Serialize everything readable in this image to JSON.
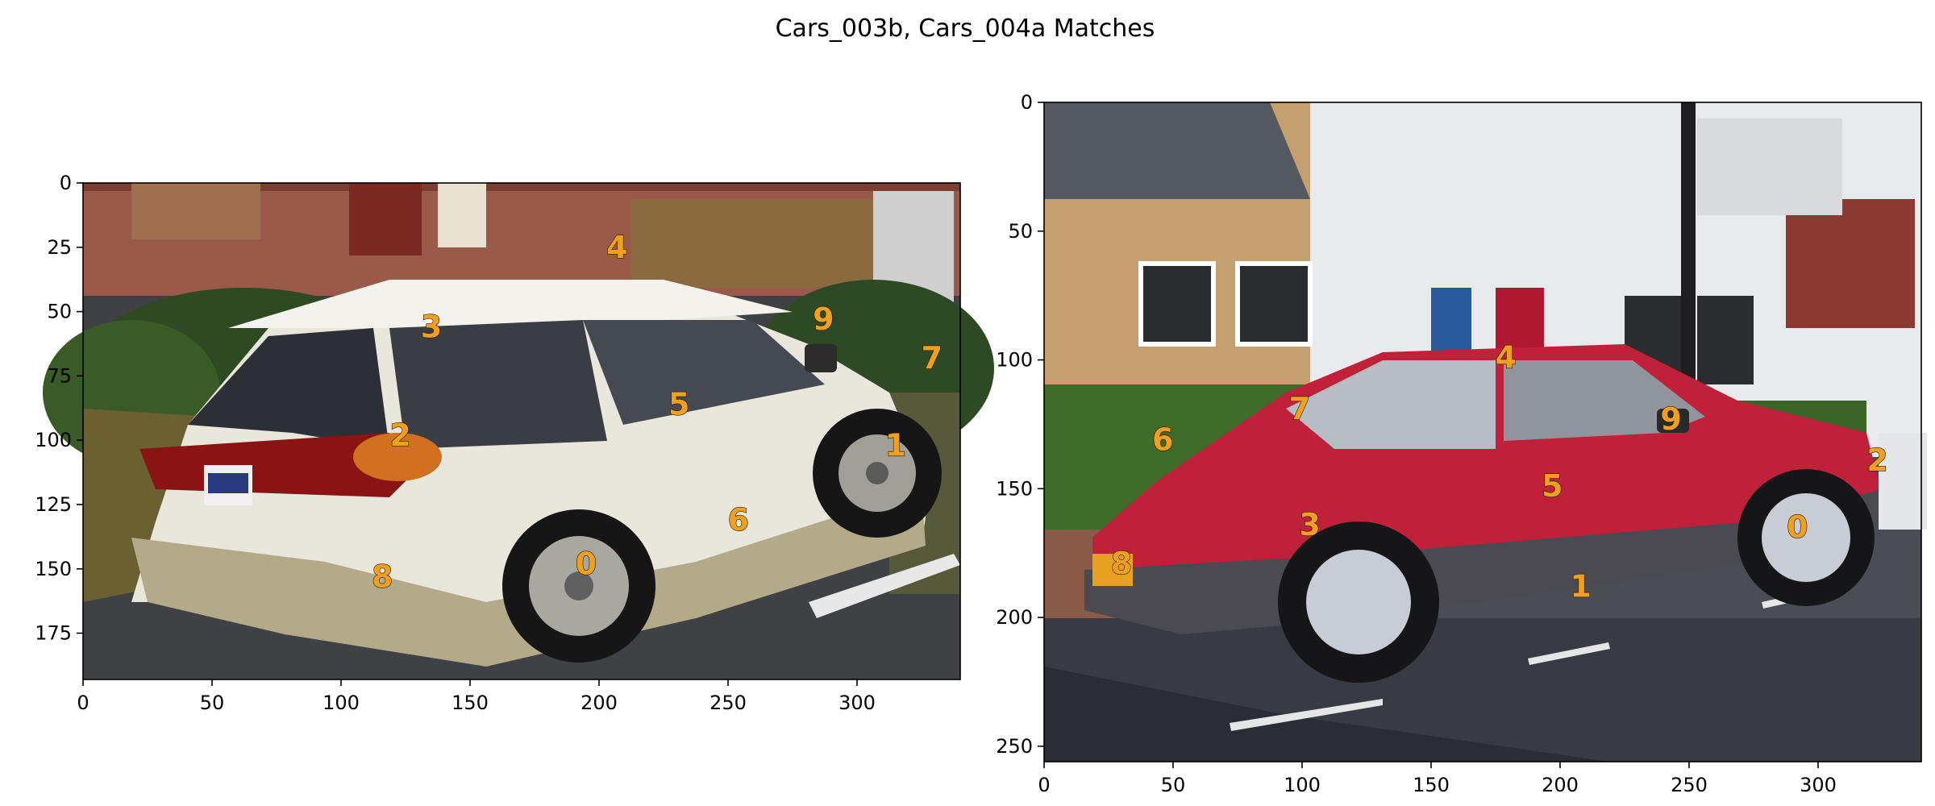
{
  "figure": {
    "title": "Cars_003b, Cars_004a Matches",
    "keypoint_color": "#f0a020"
  },
  "chart_data": [
    {
      "type": "scatter",
      "name": "Cars_003b",
      "title": "",
      "xlabel": "",
      "ylabel": "",
      "xlim": [
        0,
        340
      ],
      "ylim": [
        193,
        0
      ],
      "y_inverted": true,
      "grid": false,
      "xticks": [
        0,
        50,
        100,
        150,
        200,
        250,
        300
      ],
      "yticks": [
        0,
        25,
        50,
        75,
        100,
        125,
        150,
        175
      ],
      "points": [
        {
          "label": "0",
          "x": 195,
          "y": 148
        },
        {
          "label": "1",
          "x": 315,
          "y": 102
        },
        {
          "label": "2",
          "x": 123,
          "y": 98
        },
        {
          "label": "3",
          "x": 135,
          "y": 56
        },
        {
          "label": "4",
          "x": 207,
          "y": 25
        },
        {
          "label": "5",
          "x": 231,
          "y": 86
        },
        {
          "label": "6",
          "x": 254,
          "y": 131
        },
        {
          "label": "7",
          "x": 329,
          "y": 68
        },
        {
          "label": "8",
          "x": 116,
          "y": 153
        },
        {
          "label": "9",
          "x": 287,
          "y": 53
        }
      ]
    },
    {
      "type": "scatter",
      "name": "Cars_004a",
      "title": "",
      "xlabel": "",
      "ylabel": "",
      "xlim": [
        0,
        340
      ],
      "ylim": [
        256,
        0
      ],
      "y_inverted": true,
      "grid": false,
      "xticks": [
        0,
        50,
        100,
        150,
        200,
        250,
        300
      ],
      "yticks": [
        0,
        50,
        100,
        150,
        200,
        250
      ],
      "points": [
        {
          "label": "0",
          "x": 292,
          "y": 165
        },
        {
          "label": "1",
          "x": 208,
          "y": 188
        },
        {
          "label": "2",
          "x": 323,
          "y": 139
        },
        {
          "label": "3",
          "x": 103,
          "y": 164
        },
        {
          "label": "4",
          "x": 179,
          "y": 99
        },
        {
          "label": "5",
          "x": 197,
          "y": 149
        },
        {
          "label": "6",
          "x": 46,
          "y": 131
        },
        {
          "label": "7",
          "x": 99,
          "y": 119
        },
        {
          "label": "8",
          "x": 30,
          "y": 179
        },
        {
          "label": "9",
          "x": 243,
          "y": 123
        }
      ]
    }
  ]
}
